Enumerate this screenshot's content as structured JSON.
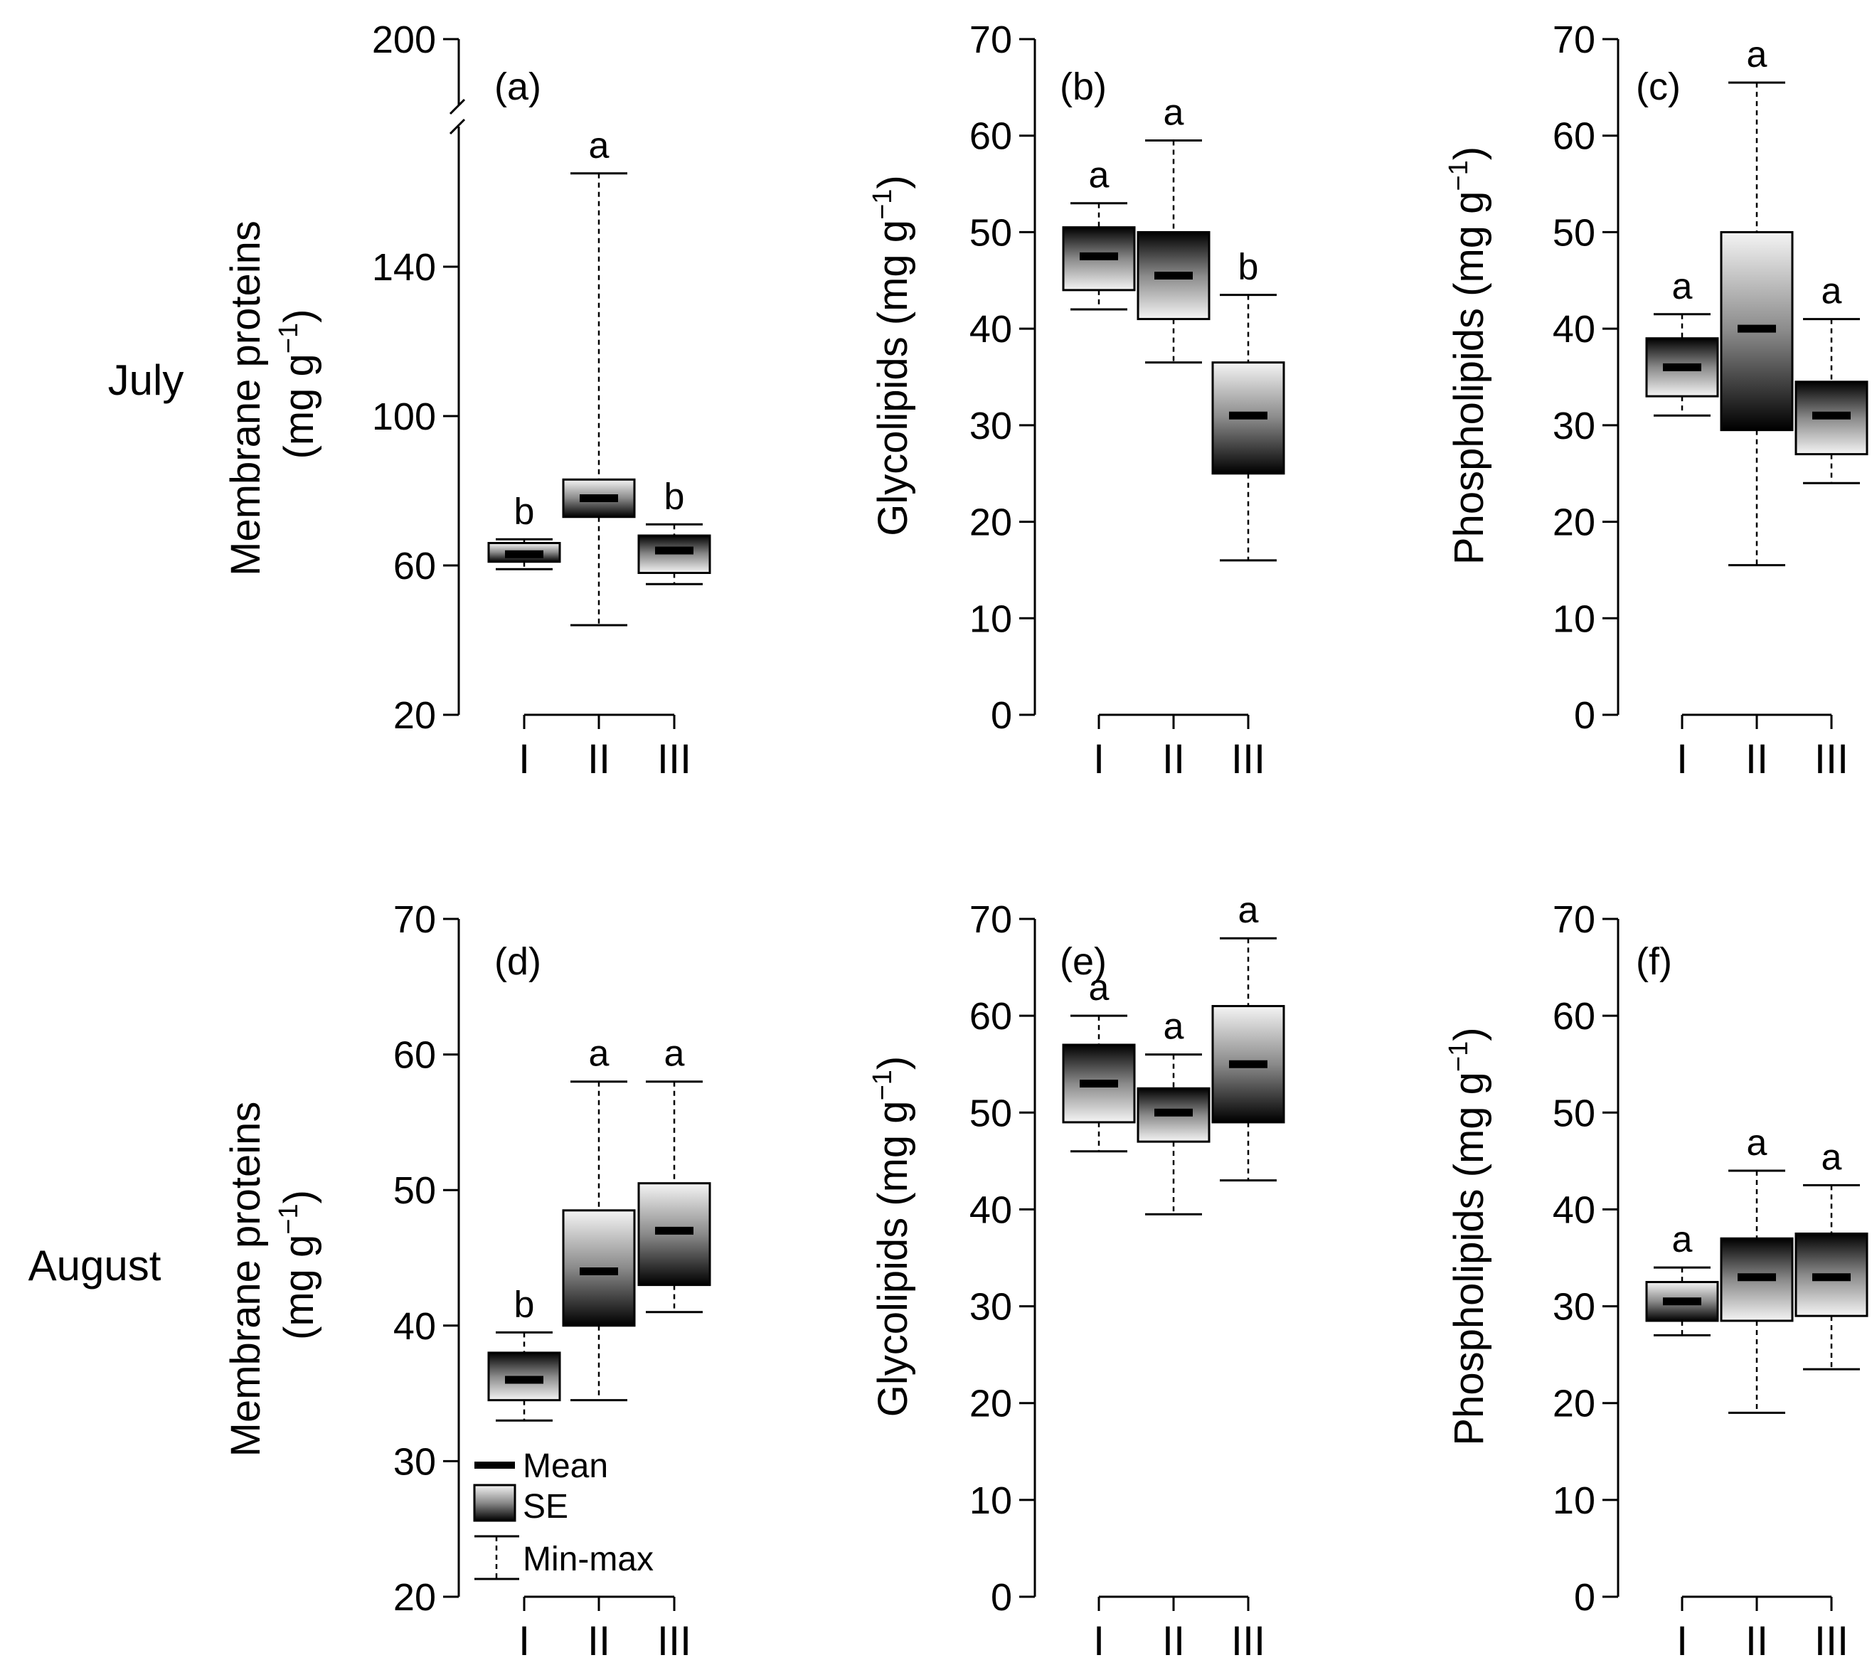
{
  "row_labels": [
    "July",
    "August"
  ],
  "legend": {
    "mean": "Mean",
    "se": "SE",
    "minmax": "Min-max"
  },
  "colors": {
    "box_dark": "#000000",
    "box_light": "#ffffff",
    "ink": "#000000"
  },
  "chart_data": [
    {
      "type": "box",
      "panel": "(a)",
      "row": "July",
      "ylabel": "Membrane proteins",
      "ylabel_unit": "(mg g",
      "ylabel_sup": "−1",
      "ylabel_close": ")",
      "ylim": [
        20,
        200
      ],
      "yticks": [
        20,
        60,
        100,
        140,
        200
      ],
      "axis_break": true,
      "categories": [
        "I",
        "II",
        "III"
      ],
      "boxes": [
        {
          "mean": 63,
          "se_low": 61,
          "se_high": 66,
          "min": 59,
          "max": 67,
          "letter": "b",
          "light_top": true
        },
        {
          "mean": 78,
          "se_low": 73,
          "se_high": 83,
          "min": 44,
          "max": 165,
          "letter": "a",
          "light_top": true
        },
        {
          "mean": 64,
          "se_low": 58,
          "se_high": 68,
          "min": 55,
          "max": 71,
          "letter": "b",
          "light_top": false
        }
      ]
    },
    {
      "type": "box",
      "panel": "(b)",
      "row": "July",
      "ylabel": "Glycolipids",
      "ylabel_unit": "(mg g",
      "ylabel_sup": "−1",
      "ylabel_close": ")",
      "ylim": [
        0,
        70
      ],
      "yticks": [
        0,
        10,
        20,
        30,
        40,
        50,
        60,
        70
      ],
      "categories": [
        "I",
        "II",
        "III"
      ],
      "boxes": [
        {
          "mean": 47.5,
          "se_low": 44,
          "se_high": 50.5,
          "min": 42,
          "max": 53,
          "letter": "a",
          "light_top": false
        },
        {
          "mean": 45.5,
          "se_low": 41,
          "se_high": 50,
          "min": 36.5,
          "max": 59.5,
          "letter": "a",
          "light_top": false
        },
        {
          "mean": 31,
          "se_low": 25,
          "se_high": 36.5,
          "min": 16,
          "max": 43.5,
          "letter": "b",
          "light_top": true
        }
      ]
    },
    {
      "type": "box",
      "panel": "(c)",
      "row": "July",
      "ylabel": "Phospholipids",
      "ylabel_unit": "(mg g",
      "ylabel_sup": "−1",
      "ylabel_close": ")",
      "ylim": [
        0,
        70
      ],
      "yticks": [
        0,
        10,
        20,
        30,
        40,
        50,
        60,
        70
      ],
      "categories": [
        "I",
        "II",
        "III"
      ],
      "boxes": [
        {
          "mean": 36,
          "se_low": 33,
          "se_high": 39,
          "min": 31,
          "max": 41.5,
          "letter": "a",
          "light_top": false
        },
        {
          "mean": 40,
          "se_low": 29.5,
          "se_high": 50,
          "min": 15.5,
          "max": 65.5,
          "letter": "a",
          "light_top": true
        },
        {
          "mean": 31,
          "se_low": 27,
          "se_high": 34.5,
          "min": 24,
          "max": 41,
          "letter": "a",
          "light_top": false
        }
      ]
    },
    {
      "type": "box",
      "panel": "(d)",
      "row": "August",
      "ylabel": "Membrane proteins",
      "ylabel_unit": "(mg g",
      "ylabel_sup": "−1",
      "ylabel_close": ")",
      "ylim": [
        20,
        70
      ],
      "yticks": [
        20,
        30,
        40,
        50,
        60,
        70
      ],
      "categories": [
        "I",
        "II",
        "III"
      ],
      "boxes": [
        {
          "mean": 36,
          "se_low": 34.5,
          "se_high": 38,
          "min": 33,
          "max": 39.5,
          "letter": "b",
          "light_top": false
        },
        {
          "mean": 44,
          "se_low": 40,
          "se_high": 48.5,
          "min": 34.5,
          "max": 58,
          "letter": "a",
          "light_top": true
        },
        {
          "mean": 47,
          "se_low": 43,
          "se_high": 50.5,
          "min": 41,
          "max": 58,
          "letter": "a",
          "light_top": true
        }
      ]
    },
    {
      "type": "box",
      "panel": "(e)",
      "row": "August",
      "ylabel": "Glycolipids",
      "ylabel_unit": "(mg g",
      "ylabel_sup": "−1",
      "ylabel_close": ")",
      "ylim": [
        0,
        70
      ],
      "yticks": [
        0,
        10,
        20,
        30,
        40,
        50,
        60,
        70
      ],
      "categories": [
        "I",
        "II",
        "III"
      ],
      "boxes": [
        {
          "mean": 53,
          "se_low": 49,
          "se_high": 57,
          "min": 46,
          "max": 60,
          "letter": "a",
          "light_top": false
        },
        {
          "mean": 50,
          "se_low": 47,
          "se_high": 52.5,
          "min": 39.5,
          "max": 56,
          "letter": "a",
          "light_top": false
        },
        {
          "mean": 55,
          "se_low": 49,
          "se_high": 61,
          "min": 43,
          "max": 68,
          "letter": "a",
          "light_top": true
        }
      ]
    },
    {
      "type": "box",
      "panel": "(f)",
      "row": "August",
      "ylabel": "Phospholipids",
      "ylabel_unit": "(mg g",
      "ylabel_sup": "−1",
      "ylabel_close": ")",
      "ylim": [
        0,
        70
      ],
      "yticks": [
        0,
        10,
        20,
        30,
        40,
        50,
        60,
        70
      ],
      "categories": [
        "I",
        "II",
        "III"
      ],
      "boxes": [
        {
          "mean": 30.5,
          "se_low": 28.5,
          "se_high": 32.5,
          "min": 27,
          "max": 34,
          "letter": "a",
          "light_top": true
        },
        {
          "mean": 33,
          "se_low": 28.5,
          "se_high": 37,
          "min": 19,
          "max": 44,
          "letter": "a",
          "light_top": false
        },
        {
          "mean": 33,
          "se_low": 29,
          "se_high": 37.5,
          "min": 23.5,
          "max": 42.5,
          "letter": "a",
          "light_top": false
        }
      ]
    }
  ]
}
